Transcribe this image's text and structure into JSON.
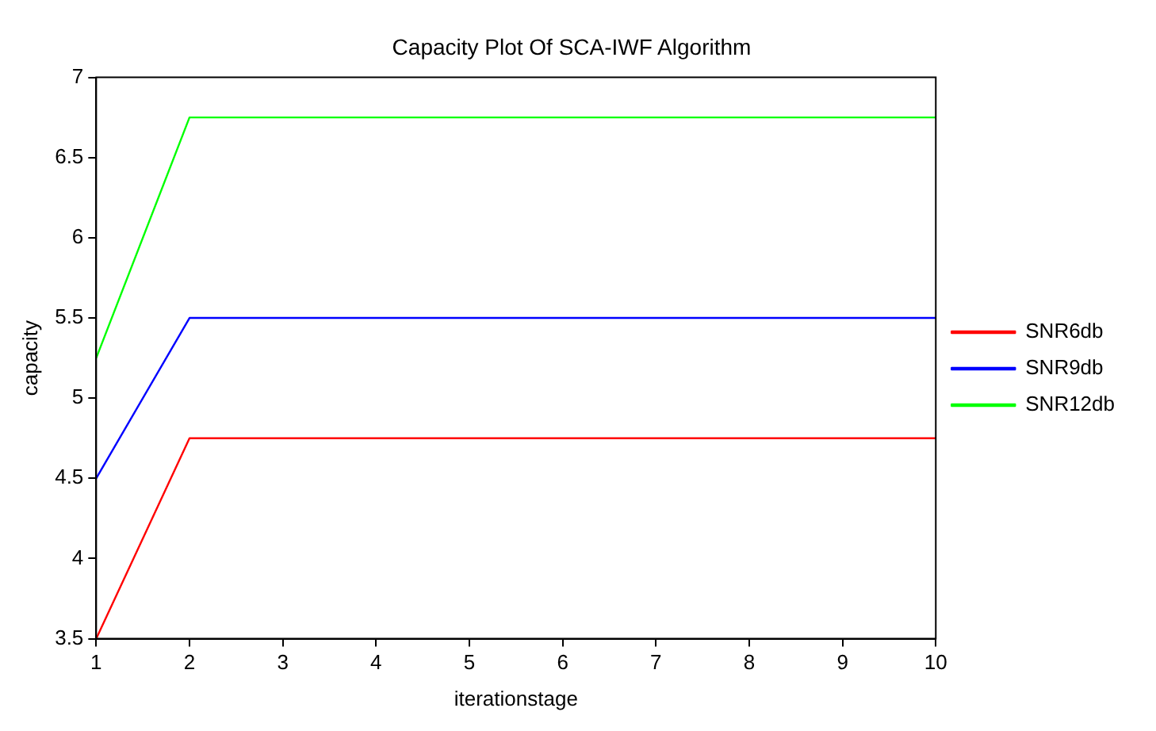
{
  "chart_data": {
    "type": "line",
    "title": "Capacity Plot Of SCA-IWF Algorithm",
    "xlabel": "iterationstage",
    "ylabel": "capacity",
    "x": [
      1,
      2,
      3,
      4,
      5,
      6,
      7,
      8,
      9,
      10
    ],
    "series": [
      {
        "name": "SNR6db",
        "color": "#ff0000",
        "values": [
          3.5,
          4.75,
          4.75,
          4.75,
          4.75,
          4.75,
          4.75,
          4.75,
          4.75,
          4.75
        ]
      },
      {
        "name": "SNR9db",
        "color": "#0000ff",
        "values": [
          4.5,
          5.5,
          5.5,
          5.5,
          5.5,
          5.5,
          5.5,
          5.5,
          5.5,
          5.5
        ]
      },
      {
        "name": "SNR12db",
        "color": "#00ff00",
        "values": [
          5.25,
          6.75,
          6.75,
          6.75,
          6.75,
          6.75,
          6.75,
          6.75,
          6.75,
          6.75
        ]
      }
    ],
    "xlim": [
      1,
      10
    ],
    "xticks": [
      1,
      2,
      3,
      4,
      5,
      6,
      7,
      8,
      9,
      10
    ],
    "ylim": [
      3.5,
      7
    ],
    "yticks": [
      3.5,
      4,
      4.5,
      5,
      5.5,
      6,
      6.5,
      7
    ],
    "grid": false,
    "legend": "right",
    "marker": "none",
    "line_style": "solid"
  }
}
